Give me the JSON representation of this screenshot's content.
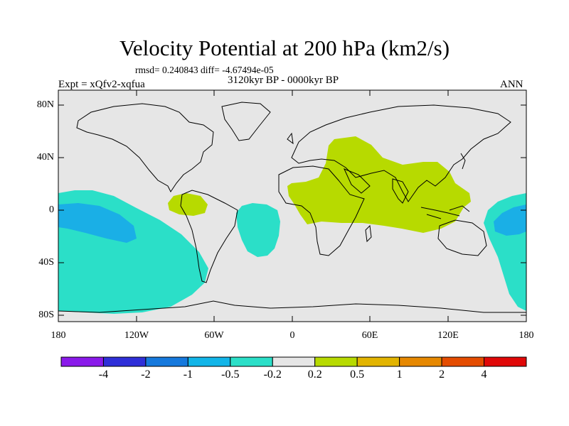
{
  "title": "Velocity Potential at 200 hPa (km2/s)",
  "stats": "rmsd= 0.240843 diff= -4.67494e-05",
  "experiment": "Expt = xQfv2-xqfua",
  "period": "3120kyr BP - 0000kyr BP",
  "season": "ANN",
  "colors": {
    "ocean_bg": "#e6e6e6",
    "neg_level_1": "#2bdfc8",
    "neg_level_2": "#1aafe6",
    "pos_level_1": "#b7da00",
    "coast": "#000000"
  },
  "map": {
    "lat_labels": [
      "80N",
      "40N",
      "0",
      "40S",
      "80S"
    ],
    "lon_labels": [
      "180",
      "120W",
      "60W",
      "0",
      "60E",
      "120E",
      "180"
    ]
  },
  "colorbar": {
    "colors": [
      "#8a1aea",
      "#2f2fd8",
      "#1679dd",
      "#12b5e8",
      "#2bdfc8",
      "#e6e6e6",
      "#b7da00",
      "#e2b400",
      "#e68800",
      "#e44c00",
      "#e00808"
    ],
    "labels": [
      "-4",
      "-2",
      "-1",
      "-0.5",
      "-0.2",
      "0.2",
      "0.5",
      "1",
      "2",
      "4"
    ]
  }
}
